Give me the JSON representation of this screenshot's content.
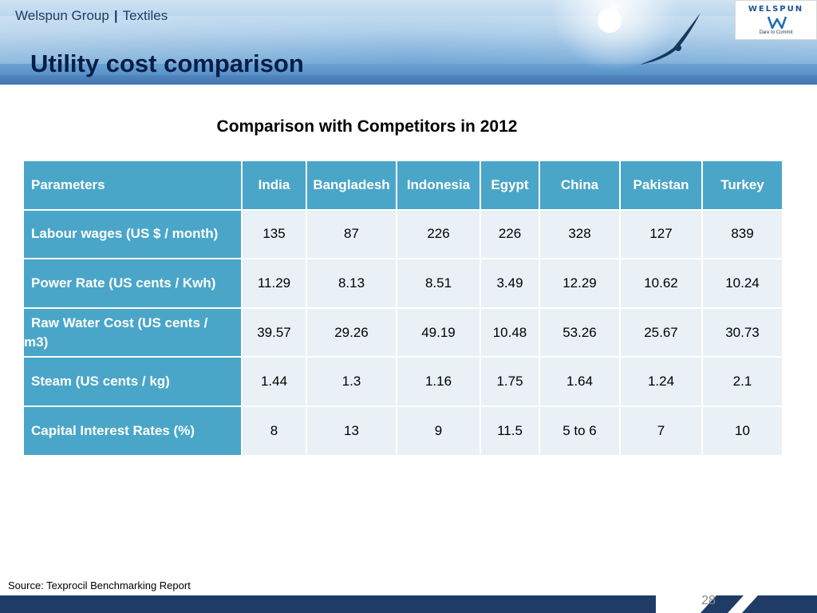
{
  "header": {
    "company": "Welspun Group",
    "separator": "|",
    "division": "Textiles",
    "title": "Utility cost comparison"
  },
  "logo": {
    "wordmark": "WELSPUN",
    "tagline": "Dare to Commit",
    "icon": "welspun-w-icon"
  },
  "table": {
    "caption": "Comparison with Competitors in 2012",
    "columns": [
      "Parameters",
      "India",
      "Bangladesh",
      "Indonesia",
      "Egypt",
      "China",
      "Pakistan",
      "Turkey"
    ],
    "rows": [
      {
        "label": "Labour wages (US $ / month)",
        "values": [
          "135",
          "87",
          "226",
          "226",
          "328",
          "127",
          "839"
        ]
      },
      {
        "label": "Power Rate (US cents / Kwh)",
        "values": [
          "11.29",
          "8.13",
          "8.51",
          "3.49",
          "12.29",
          "10.62",
          "10.24"
        ]
      },
      {
        "label_line1": "Raw Water Cost (US cents /",
        "label_line2": "m3)",
        "values": [
          "39.57",
          "29.26",
          "49.19",
          "10.48",
          "53.26",
          "25.67",
          "30.73"
        ]
      },
      {
        "label": "Steam (US cents / kg)",
        "values": [
          "1.44",
          "1.3",
          "1.16",
          "1.75",
          "1.64",
          "1.24",
          "2.1"
        ]
      },
      {
        "label": "Capital Interest Rates (%)",
        "values": [
          "8",
          "13",
          "9",
          "11.5",
          "5 to 6",
          "7",
          "10"
        ]
      }
    ]
  },
  "source": "Source: Texprocil Benchmarking Report",
  "footer": {
    "page_number": "28"
  },
  "colors": {
    "table_header": "#4aa6c8",
    "table_cell": "#e9f1f6",
    "title": "#061e46",
    "footer": "#1f3c66"
  }
}
